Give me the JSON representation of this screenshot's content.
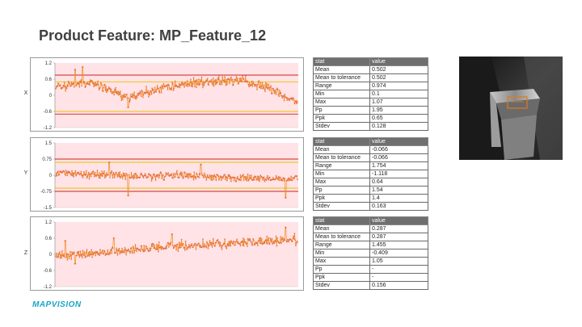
{
  "page": {
    "title": "Product Feature: MP_Feature_12",
    "logo_text": "MAPVISION"
  },
  "colors": {
    "band": "#ffe3e6",
    "series": "#e0633a",
    "series_line": "#f08a1a",
    "limit_red": "#cc2222",
    "limit_yellow": "#e8c200",
    "table_header": "#6f6f6f"
  },
  "chart_data": [
    {
      "type": "line",
      "axis_name": "X",
      "ylim": [
        -1.2,
        1.2
      ],
      "yticks": [
        "1.2",
        "0.6",
        "0",
        "-0.6",
        "-1.2"
      ],
      "ytick_values": [
        1.2,
        0.6,
        0,
        -0.6,
        -1.2
      ],
      "band": [
        -1.2,
        1.2
      ],
      "limit_lines": [
        {
          "value": 0.75,
          "color": "red"
        },
        {
          "value": 0.5,
          "color": "yellow"
        },
        {
          "value": -0.6,
          "color": "yellow"
        },
        {
          "value": -0.7,
          "color": "red"
        }
      ],
      "points": 420,
      "mean_profile": [
        [
          0,
          0.3
        ],
        [
          0.15,
          0.45
        ],
        [
          0.3,
          -0.1
        ],
        [
          0.45,
          0.3
        ],
        [
          0.6,
          0.5
        ],
        [
          0.75,
          0.55
        ],
        [
          0.87,
          0.3
        ],
        [
          1.0,
          -0.3
        ]
      ],
      "noise": 0.13,
      "spikes": [
        [
          0.08,
          0.95
        ],
        [
          0.11,
          1.05
        ],
        [
          0.3,
          -0.45
        ]
      ]
    },
    {
      "type": "line",
      "axis_name": "Y",
      "ylim": [
        -1.5,
        1.5
      ],
      "yticks": [
        "1.5",
        "0.75",
        "0",
        "-0.75",
        "-1.5"
      ],
      "ytick_values": [
        1.5,
        0.75,
        0,
        -0.75,
        -1.5
      ],
      "band": [
        -1.5,
        1.5
      ],
      "limit_lines": [
        {
          "value": 0.75,
          "color": "red"
        },
        {
          "value": 0.6,
          "color": "yellow"
        },
        {
          "value": -0.6,
          "color": "yellow"
        },
        {
          "value": -0.75,
          "color": "red"
        }
      ],
      "points": 420,
      "mean_profile": [
        [
          0,
          0.1
        ],
        [
          0.2,
          0.05
        ],
        [
          0.35,
          -0.05
        ],
        [
          0.5,
          0.0
        ],
        [
          0.7,
          -0.1
        ],
        [
          0.85,
          -0.15
        ],
        [
          1.0,
          -0.2
        ]
      ],
      "noise": 0.12,
      "spikes": [
        [
          0.22,
          0.6
        ],
        [
          0.3,
          -0.95
        ],
        [
          0.6,
          0.5
        ],
        [
          0.95,
          -1.05
        ]
      ]
    },
    {
      "type": "line",
      "axis_name": "Z",
      "ylim": [
        -1.2,
        1.2
      ],
      "yticks": [
        "1.2",
        "0.6",
        "0",
        "-0.6",
        "-1.2"
      ],
      "ytick_values": [
        1.2,
        0.6,
        0,
        -0.6,
        -1.2
      ],
      "band": [
        -1.2,
        1.2
      ],
      "limit_lines": [],
      "points": 420,
      "mean_profile": [
        [
          0,
          -0.05
        ],
        [
          0.2,
          0.05
        ],
        [
          0.4,
          0.25
        ],
        [
          0.6,
          0.35
        ],
        [
          0.8,
          0.45
        ],
        [
          1.0,
          0.55
        ]
      ],
      "noise": 0.12,
      "spikes": [
        [
          0.04,
          0.5
        ],
        [
          0.08,
          -0.35
        ],
        [
          0.24,
          0.6
        ],
        [
          0.48,
          0.75
        ],
        [
          0.95,
          1.0
        ]
      ]
    }
  ],
  "tables": [
    {
      "headers": [
        "stat",
        "value"
      ],
      "rows": [
        [
          "Mean",
          "0.502"
        ],
        [
          "Mean to tolerance",
          "0.502"
        ],
        [
          "Range",
          "0.974"
        ],
        [
          "Min",
          "0.1"
        ],
        [
          "Max",
          "1.07"
        ],
        [
          "Pp",
          "1.95"
        ],
        [
          "Ppk",
          "0.65"
        ],
        [
          "Stdev",
          "0.128"
        ]
      ]
    },
    {
      "headers": [
        "stat",
        "value"
      ],
      "rows": [
        [
          "Mean",
          "-0.066"
        ],
        [
          "Mean to tolerance",
          "-0.066"
        ],
        [
          "Range",
          "1.754"
        ],
        [
          "Min",
          "-1.118"
        ],
        [
          "Max",
          "0.64"
        ],
        [
          "Pp",
          "1.54"
        ],
        [
          "Ppk",
          "1.4"
        ],
        [
          "Stdev",
          "0.163"
        ]
      ]
    },
    {
      "headers": [
        "stat",
        "value"
      ],
      "rows": [
        [
          "Mean",
          "0.287"
        ],
        [
          "Mean to tolerance",
          "0.287"
        ],
        [
          "Range",
          "1.455"
        ],
        [
          "Min",
          "-0.409"
        ],
        [
          "Max",
          "1.05"
        ],
        [
          "Pp",
          "-"
        ],
        [
          "Ppk",
          "-"
        ],
        [
          "Stdev",
          "0.156"
        ]
      ]
    }
  ],
  "photo": {
    "subject": "grayscale close-up of a metal bracket with highlighted feature box",
    "highlight_color": "#e07a1a"
  }
}
